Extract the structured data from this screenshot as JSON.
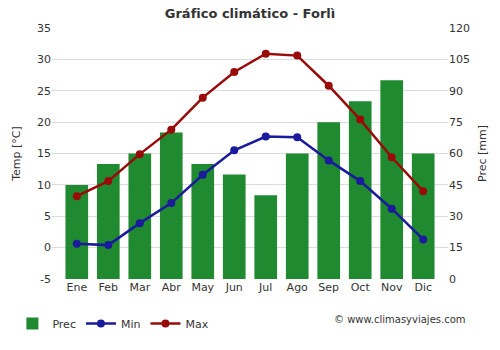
{
  "chart_data": {
    "type": "bar",
    "title": "Gráfico climático - Forlì",
    "y_label": "Temp [°C]",
    "y2_label": "Prec [mm]",
    "annotation": "© www.climasyviajes.com",
    "categories": [
      "Ene",
      "Feb",
      "Mar",
      "Abr",
      "May",
      "Jun",
      "Jul",
      "Ago",
      "Sep",
      "Oct",
      "Nov",
      "Dic"
    ],
    "series": [
      {
        "name": "Prec",
        "type": "bar",
        "axis": "y2",
        "color": "#1f8a2f",
        "values": [
          45,
          55,
          60,
          70,
          55,
          50,
          40,
          60,
          75,
          85,
          95,
          60
        ]
      },
      {
        "name": "Min",
        "type": "line",
        "color": "#1a1a9c",
        "marker": "circle",
        "line_style": "solid",
        "values": [
          0.6,
          0.4,
          3.9,
          7.1,
          11.6,
          15.5,
          17.7,
          17.6,
          13.9,
          10.6,
          6.2,
          1.3
        ]
      },
      {
        "name": "Max",
        "type": "line",
        "color": "#990b0b",
        "marker": "circle",
        "line_style": "solid",
        "values": [
          8.2,
          10.6,
          14.9,
          18.8,
          23.9,
          28.0,
          30.9,
          30.6,
          25.8,
          20.4,
          14.4,
          9.0
        ]
      }
    ],
    "ylim": [
      -5,
      35
    ],
    "yticks": [
      -5,
      0,
      5,
      10,
      15,
      20,
      25,
      30,
      35
    ],
    "y2lim": [
      0,
      120
    ],
    "y2ticks": [
      0,
      15,
      30,
      45,
      60,
      75,
      90,
      105,
      120
    ],
    "grid": true,
    "legend": "bottom"
  }
}
